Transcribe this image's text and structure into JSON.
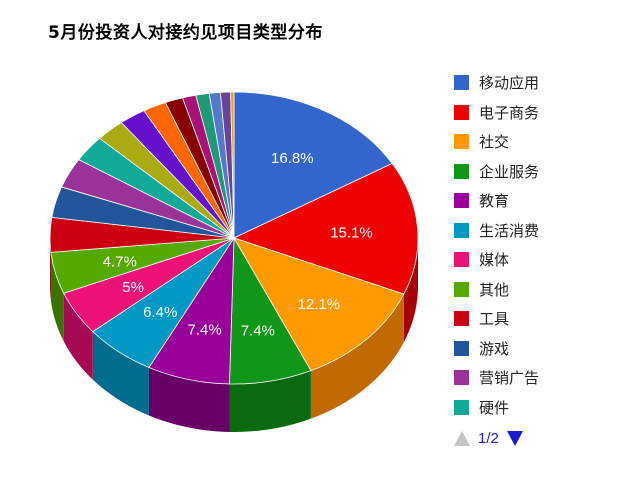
{
  "chart_data": {
    "type": "pie",
    "title": "5月份投资人对接约见项目类型分布",
    "legend_position": "right",
    "slices": [
      {
        "name": "移动应用",
        "value": 16.8,
        "label": "16.8%",
        "color": "#3366cc",
        "side": "#2447a0"
      },
      {
        "name": "电子商务",
        "value": 15.1,
        "label": "15.1%",
        "color": "#ee0000",
        "side": "#a80000"
      },
      {
        "name": "社交",
        "value": 12.1,
        "label": "12.1%",
        "color": "#ff9900",
        "side": "#c06a00"
      },
      {
        "name": "企业服务",
        "value": 7.4,
        "label": "7.4%",
        "color": "#109618",
        "side": "#0a6a10"
      },
      {
        "name": "教育",
        "value": 7.4,
        "label": "7.4%",
        "color": "#990099",
        "side": "#660066"
      },
      {
        "name": "生活消费",
        "value": 6.4,
        "label": "6.4%",
        "color": "#0099c6",
        "side": "#006d8e"
      },
      {
        "name": "媒体",
        "value": 5.0,
        "label": "5%",
        "color": "#ee1177",
        "side": "#a60a52"
      },
      {
        "name": "其他",
        "value": 4.7,
        "label": "4.7%",
        "color": "#55aa00",
        "side": "#3a7400"
      },
      {
        "name": "工具",
        "value": 3.9,
        "label": "",
        "color": "#cc0011",
        "side": "#8c000b"
      },
      {
        "name": "游戏",
        "value": 3.5,
        "label": "",
        "color": "#225599",
        "side": "#163a6a"
      },
      {
        "name": "营销广告",
        "value": 3.4,
        "label": "",
        "color": "#993399",
        "side": "#6a226a"
      },
      {
        "name": "硬件",
        "value": 3.0,
        "label": "",
        "color": "#11aa99",
        "side": "#0a766a"
      },
      {
        "name": "",
        "value": 2.6,
        "label": "",
        "color": "#aaaa11",
        "side": "#76760a"
      },
      {
        "name": "",
        "value": 2.4,
        "label": "",
        "color": "#6611cc",
        "side": "#460b8e"
      },
      {
        "name": "",
        "value": 2.1,
        "label": "",
        "color": "#ff6600",
        "side": "#b04600"
      },
      {
        "name": "",
        "value": 1.6,
        "label": "",
        "color": "#880000",
        "side": "#5a0000"
      },
      {
        "name": "",
        "value": 1.2,
        "label": "",
        "color": "#aa1177",
        "side": "#760b52"
      },
      {
        "name": "",
        "value": 1.2,
        "label": "",
        "color": "#209977",
        "side": "#136650"
      },
      {
        "name": "",
        "value": 1.0,
        "label": "",
        "color": "#5577cc",
        "side": "#3a5290"
      },
      {
        "name": "",
        "value": 0.9,
        "label": "",
        "color": "#664499",
        "side": "#452d6a"
      },
      {
        "name": "",
        "value": 0.3,
        "label": "",
        "color": "#ff9900",
        "side": "#c06a00"
      }
    ]
  },
  "legend": {
    "items": [
      {
        "label": "移动应用",
        "color": "#3366cc"
      },
      {
        "label": "电子商务",
        "color": "#ee0000"
      },
      {
        "label": "社交",
        "color": "#ff9900"
      },
      {
        "label": "企业服务",
        "color": "#109618"
      },
      {
        "label": "教育",
        "color": "#990099"
      },
      {
        "label": "生活消费",
        "color": "#0099c6"
      },
      {
        "label": "媒体",
        "color": "#ee1177"
      },
      {
        "label": "其他",
        "color": "#55aa00"
      },
      {
        "label": "工具",
        "color": "#cc0011"
      },
      {
        "label": "游戏",
        "color": "#225599"
      },
      {
        "label": "营销广告",
        "color": "#993399"
      },
      {
        "label": "硬件",
        "color": "#11aa99"
      }
    ]
  },
  "pager": {
    "text": "1/2",
    "prev_icon": "triangle-up-icon",
    "next_icon": "triangle-down-icon",
    "prev_color": "#c4c4c4",
    "next_color": "#1a1acc"
  }
}
